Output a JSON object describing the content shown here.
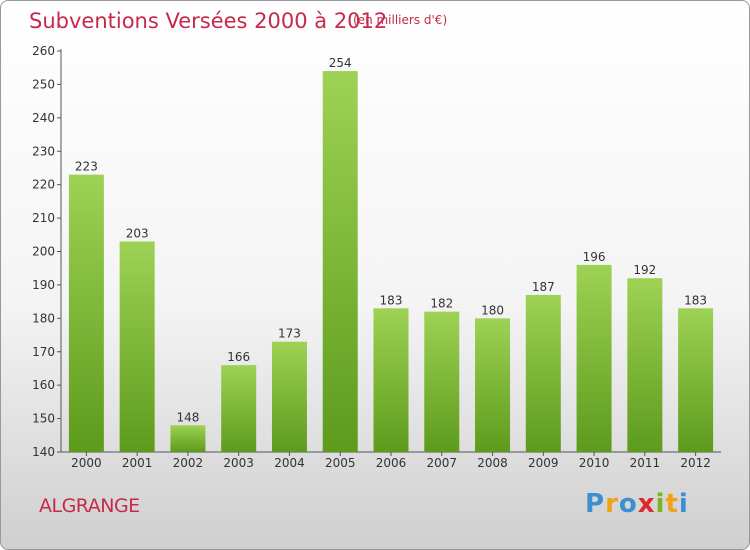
{
  "chart_data": {
    "type": "bar",
    "title": "Subventions Versées 2000 à 2012",
    "subtitle": "(en milliers d'€)",
    "categories": [
      "2000",
      "2001",
      "2002",
      "2003",
      "2004",
      "2005",
      "2006",
      "2007",
      "2008",
      "2009",
      "2010",
      "2011",
      "2012"
    ],
    "values": [
      223,
      203,
      148,
      166,
      173,
      254,
      183,
      182,
      180,
      187,
      196,
      192,
      183
    ],
    "xlabel": "",
    "ylabel": "",
    "ylim": [
      140,
      260
    ],
    "yticks": [
      140,
      150,
      160,
      170,
      180,
      190,
      200,
      210,
      220,
      230,
      240,
      250,
      260
    ],
    "grid": false,
    "bar_color": "#7bbf35",
    "text_color": "#c8284a"
  },
  "place_name": "ALGRANGE",
  "logo": {
    "letters": [
      "P",
      "r",
      "o",
      "x",
      "i",
      "t",
      "i"
    ],
    "colors": [
      "#3b8fd3",
      "#f0a21a",
      "#3b8fd3",
      "#e0282e",
      "#7bb522",
      "#f0a21a",
      "#3b8fd3"
    ]
  }
}
